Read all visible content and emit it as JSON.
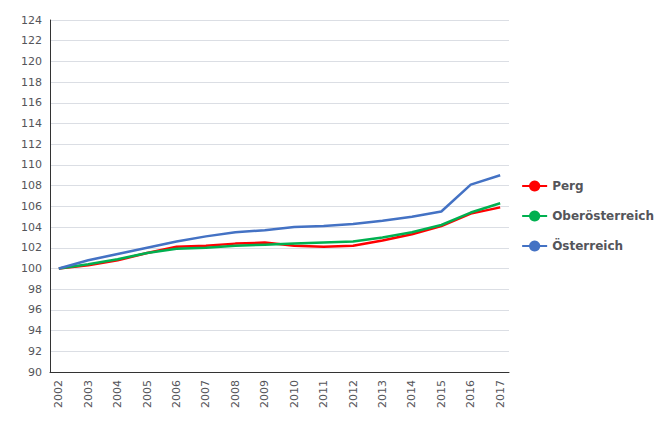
{
  "chart_data": {
    "type": "line",
    "x": [
      2002,
      2003,
      2004,
      2005,
      2006,
      2007,
      2008,
      2009,
      2010,
      2011,
      2012,
      2013,
      2014,
      2015,
      2016,
      2017
    ],
    "xlim": [
      2001.7,
      2017.3
    ],
    "xticks": [
      2002,
      2003,
      2004,
      2005,
      2006,
      2007,
      2008,
      2009,
      2010,
      2011,
      2012,
      2013,
      2014,
      2015,
      2016,
      2017
    ],
    "ylim": [
      90,
      124
    ],
    "yticks": [
      90,
      92,
      94,
      96,
      98,
      100,
      102,
      104,
      106,
      108,
      110,
      112,
      114,
      116,
      118,
      120,
      122,
      124
    ],
    "grid": true,
    "legend": "right",
    "series": [
      {
        "name": "Perg",
        "color": "#ff0000",
        "values": [
          100.0,
          100.3,
          100.8,
          101.5,
          102.1,
          102.2,
          102.4,
          102.5,
          102.2,
          102.1,
          102.2,
          102.7,
          103.3,
          104.1,
          105.3,
          105.9
        ]
      },
      {
        "name": "Oberösterreich",
        "color": "#00b050",
        "values": [
          100.0,
          100.4,
          100.9,
          101.5,
          101.9,
          102.0,
          102.2,
          102.3,
          102.4,
          102.5,
          102.6,
          103.0,
          103.5,
          104.2,
          105.4,
          106.3
        ]
      },
      {
        "name": "Österreich",
        "color": "#4472c4",
        "values": [
          100.0,
          100.8,
          101.4,
          102.0,
          102.6,
          103.1,
          103.5,
          103.7,
          104.0,
          104.1,
          104.3,
          104.6,
          105.0,
          105.5,
          108.1,
          109.0
        ]
      }
    ]
  }
}
